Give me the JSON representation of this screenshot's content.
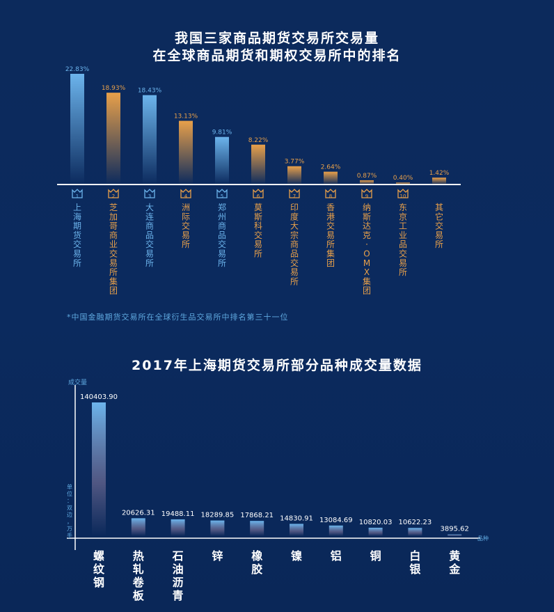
{
  "chart_data": [
    {
      "type": "bar",
      "title_line1": "我国三家商品期货交易所交易量",
      "title_line2": "在全球商品期货和期权交易所中的排名",
      "categories": [
        "上海期货交易所",
        "芝加哥商业交易所集团",
        "大连商品交易所",
        "洲际交易所",
        "郑州商品交易所",
        "莫斯科交易所",
        "印度大宗商品交易所",
        "香港交易所集团",
        "纳斯达克·OMX集团",
        "东京工业品交易所",
        "其它交易所"
      ],
      "ranks": [
        "1",
        "2",
        "3",
        "4",
        "5",
        "6",
        "7",
        "8",
        "9",
        "10",
        ""
      ],
      "values": [
        22.83,
        18.93,
        18.43,
        13.13,
        9.81,
        8.22,
        3.77,
        2.64,
        0.87,
        0.4,
        1.42
      ],
      "labels": [
        "22.83%",
        "18.93%",
        "18.43%",
        "13.13%",
        "9.81%",
        "8.22%",
        "3.77%",
        "2.64%",
        "0.87%",
        "0.40%",
        "1.42%"
      ],
      "highlight": [
        true,
        false,
        true,
        false,
        true,
        false,
        false,
        false,
        false,
        false,
        false
      ],
      "note": "*中国金融期货交易所在全球衍生品交易所中排名第三十一位"
    },
    {
      "type": "bar",
      "title": "2017年上海期货交易所部分品种成交量数据",
      "ylabel": "成交量",
      "unit": "单位：双边，万手",
      "xlabel": "品种",
      "categories": [
        "螺纹钢",
        "热轧卷板",
        "石油沥青",
        "锌",
        "橡胶",
        "镍",
        "铝",
        "铜",
        "白银",
        "黄金"
      ],
      "values": [
        140403.9,
        20626.31,
        19488.11,
        18289.85,
        17868.21,
        14830.91,
        13084.69,
        10820.03,
        10622.23,
        3895.62
      ],
      "labels": [
        "140403.90",
        "20626.31",
        "19488.11",
        "18289.85",
        "17868.21",
        "14830.91",
        "13084.69",
        "10820.03",
        "10622.23",
        "3895.62"
      ]
    }
  ],
  "colors": {
    "blue": "#6cb4ec",
    "orange": "#e8a04a",
    "blue_text": "#4fa6e6"
  }
}
